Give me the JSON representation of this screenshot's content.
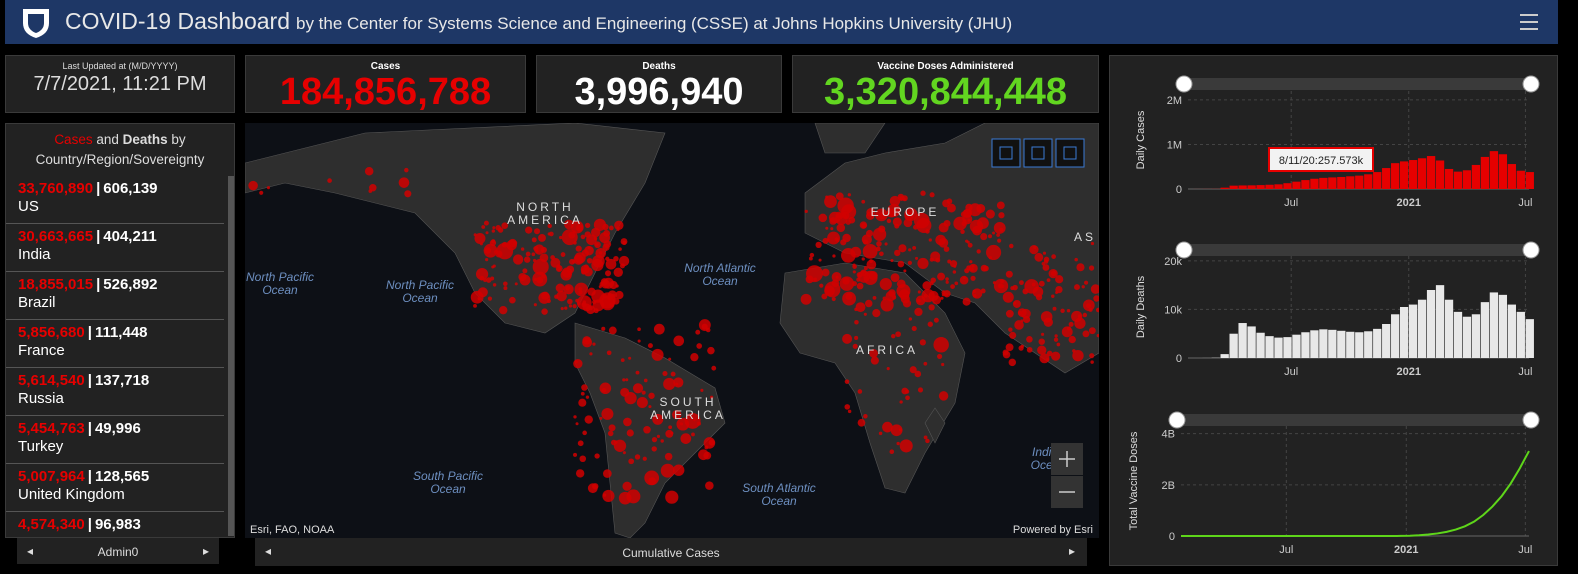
{
  "header": {
    "title": "COVID-19 Dashboard",
    "subtitle": "by the Center for Systems Science and Engineering (CSSE) at Johns Hopkins University (JHU)"
  },
  "last_updated": {
    "label": "Last Updated at (M/D/YYYY)",
    "value": "7/7/2021, 11:21 PM"
  },
  "stats": [
    {
      "label": "Cases",
      "value": "184,856,788"
    },
    {
      "label": "Deaths",
      "value": "3,996,940"
    },
    {
      "label": "Vaccine Doses Administered",
      "value": "3,320,844,448"
    }
  ],
  "country_list": {
    "title": {
      "cases": "Cases",
      "and": "and",
      "deaths": "Deaths",
      "by": "by",
      "rest": "Country/Region/Sovereignty"
    },
    "rows": [
      {
        "cases": "33,760,890",
        "deaths": "606,139",
        "name": "US"
      },
      {
        "cases": "30,663,665",
        "deaths": "404,211",
        "name": "India"
      },
      {
        "cases": "18,855,015",
        "deaths": "526,892",
        "name": "Brazil"
      },
      {
        "cases": "5,856,680",
        "deaths": "111,448",
        "name": "France"
      },
      {
        "cases": "5,614,540",
        "deaths": "137,718",
        "name": "Russia"
      },
      {
        "cases": "5,454,763",
        "deaths": "49,996",
        "name": "Turkey"
      },
      {
        "cases": "5,007,964",
        "deaths": "128,565",
        "name": "United Kingdom"
      },
      {
        "cases": "4,574,340",
        "deaths": "96,983"
      }
    ],
    "tab": "Admin0"
  },
  "map": {
    "labels": [
      {
        "lines": [
          "NORTH",
          "AMERICA"
        ]
      },
      {
        "lines": [
          "SOUTH",
          "AMERICA"
        ]
      },
      {
        "lines": [
          "EUROPE"
        ]
      },
      {
        "lines": [
          "AFRICA"
        ]
      },
      {
        "lines": [
          "AS"
        ]
      },
      {
        "lines": [
          "North Pacific",
          "Ocean"
        ]
      },
      {
        "lines": [
          "North Pacific",
          "Ocean"
        ]
      },
      {
        "lines": [
          "North Atlantic",
          "Ocean"
        ]
      },
      {
        "lines": [
          "South Pacific",
          "Ocean"
        ]
      },
      {
        "lines": [
          "South Atlantic",
          "Ocean"
        ]
      },
      {
        "lines": [
          "India",
          "Ocea"
        ]
      }
    ],
    "attribution": "Esri, FAO, NOAA",
    "powered_by": "Powered by Esri",
    "tab": "Cumulative Cases"
  },
  "charts": [
    {
      "type": "bar",
      "y_label": "Daily Cases",
      "color": "#e60000",
      "grid": true,
      "annotation": "8/11/20:257.573k",
      "values": [
        0,
        1000,
        2000,
        3000,
        30000,
        75000,
        80000,
        82000,
        88000,
        95000,
        105000,
        130000,
        165000,
        200000,
        230000,
        250000,
        260000,
        270000,
        285000,
        300000,
        330000,
        380000,
        470000,
        580000,
        620000,
        650000,
        690000,
        740000,
        640000,
        450000,
        390000,
        420000,
        540000,
        720000,
        850000,
        780000,
        560000,
        410000,
        380000
      ],
      "xlim": [
        0,
        38
      ],
      "xticks": [
        {
          "value": 11.5,
          "label": "Jul"
        },
        {
          "value": 24.6,
          "label": "2021"
        },
        {
          "value": 37.6,
          "label": "Jul"
        }
      ],
      "ylim": [
        0,
        2200000
      ],
      "yticks": [
        0,
        {
          "value": 1000000,
          "label": "1M"
        },
        {
          "value": 2000000,
          "label": "2M"
        }
      ]
    },
    {
      "type": "bar",
      "y_label": "Daily Deaths",
      "color": "#e8e8e8",
      "grid": true,
      "values": [
        0,
        0,
        10,
        50,
        800,
        5000,
        7200,
        6500,
        5200,
        4500,
        4200,
        4300,
        4800,
        5300,
        5700,
        5900,
        5800,
        5600,
        5400,
        5300,
        5500,
        6000,
        7000,
        9000,
        10500,
        11000,
        12000,
        14000,
        15000,
        12000,
        9500,
        8500,
        9000,
        11500,
        13500,
        13000,
        11000,
        9500,
        8000
      ],
      "xlim": [
        0,
        38
      ],
      "xticks": [
        {
          "value": 11.5,
          "label": "Jul"
        },
        {
          "value": 24.6,
          "label": "2021"
        },
        {
          "value": 37.6,
          "label": "Jul"
        }
      ],
      "ylim": [
        0,
        21000
      ],
      "yticks": [
        0,
        {
          "value": 10000,
          "label": "10k"
        },
        {
          "value": 20000,
          "label": "20k"
        }
      ]
    },
    {
      "type": "line",
      "y_label": "Total Vaccine Doses",
      "color": "#5ed61a",
      "grid": true,
      "values": [
        0,
        0,
        0,
        0,
        0,
        0,
        0,
        0,
        0,
        0,
        0,
        0,
        0,
        0,
        0,
        0,
        0,
        0,
        0,
        0,
        0,
        0,
        0,
        0,
        3000000,
        12000000,
        30000000,
        60000000,
        100000000,
        160000000,
        250000000,
        380000000,
        560000000,
        820000000,
        1150000000,
        1550000000,
        2050000000,
        2650000000,
        3320000000
      ],
      "xlim": [
        0,
        38
      ],
      "xticks": [
        {
          "value": 11.5,
          "label": "Jul"
        },
        {
          "value": 24.6,
          "label": "2021"
        },
        {
          "value": 37.6,
          "label": "Jul"
        }
      ],
      "ylim": [
        0,
        4300000000
      ],
      "yticks": [
        0,
        {
          "value": 2000000000,
          "label": "2B"
        },
        {
          "value": 4000000000,
          "label": "4B"
        }
      ]
    }
  ]
}
